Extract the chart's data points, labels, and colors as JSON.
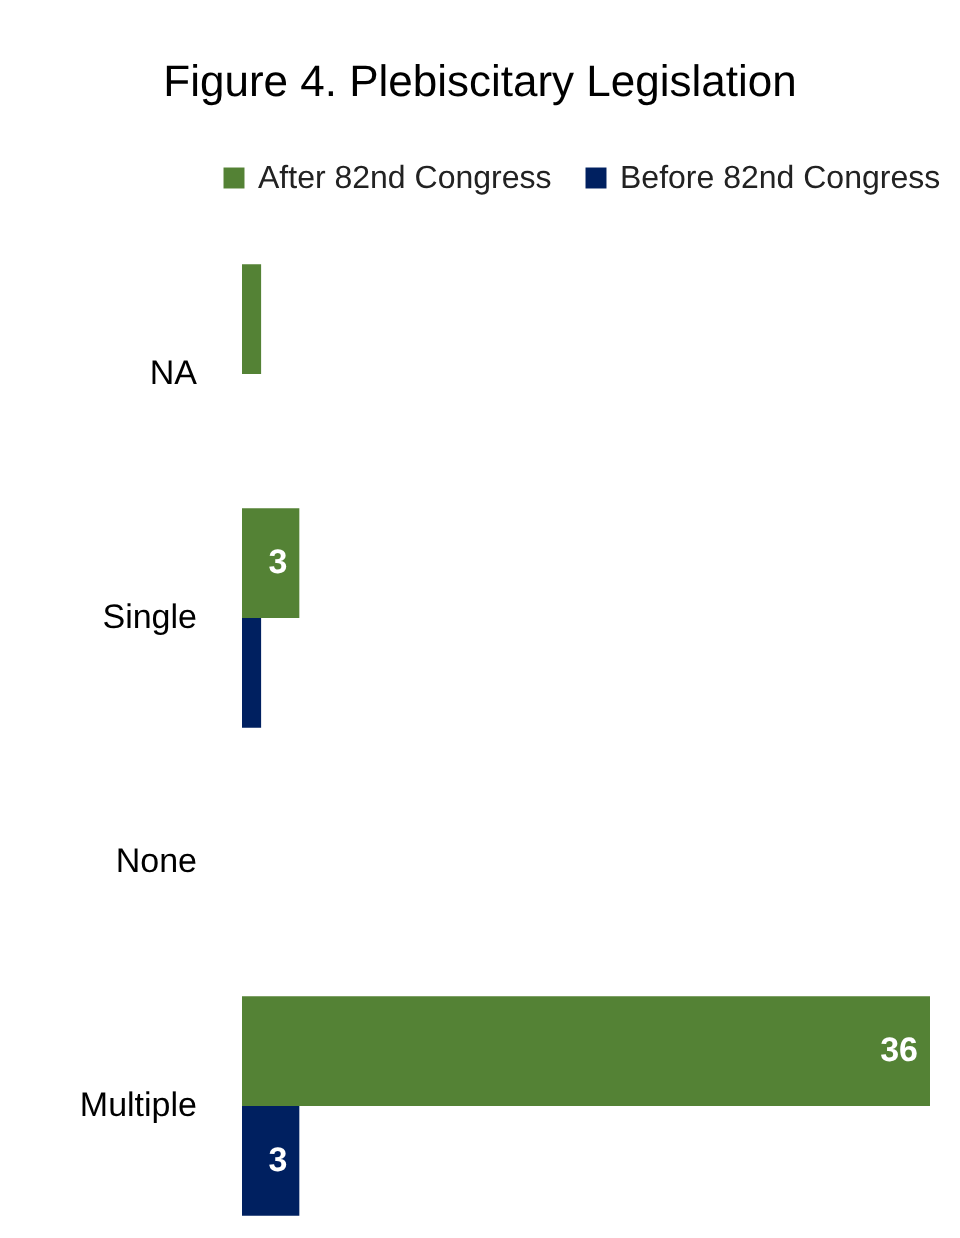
{
  "chart_data": {
    "type": "bar",
    "title": "Figure 4. Plebiscitary Legislation",
    "orientation": "horizontal",
    "categories": [
      "NA",
      "Single",
      "None",
      "Multiple"
    ],
    "series": [
      {
        "name": "After 82nd Congress",
        "color": "#548235",
        "values": [
          1,
          3,
          null,
          36
        ],
        "value_labels": [
          null,
          "3",
          null,
          "36"
        ]
      },
      {
        "name": "Before 82nd Congress",
        "color": "#002060",
        "values": [
          null,
          1,
          null,
          3
        ],
        "value_labels": [
          null,
          null,
          null,
          "3"
        ]
      }
    ],
    "xlim": [
      0,
      36
    ],
    "tick_labels": "y",
    "legend": "top right",
    "grid": false
  }
}
